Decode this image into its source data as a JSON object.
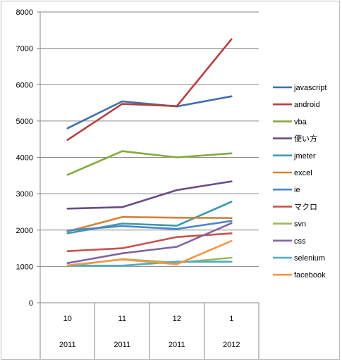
{
  "chart_data": {
    "type": "line",
    "title": "",
    "xlabel": "",
    "ylabel": "",
    "categories": [
      {
        "month": "10",
        "year": "2011"
      },
      {
        "month": "11",
        "year": "2011"
      },
      {
        "month": "12",
        "year": "2011"
      },
      {
        "month": "1",
        "year": "2012"
      }
    ],
    "ylim": [
      0,
      8000
    ],
    "yticks": [
      "0",
      "1000",
      "2000",
      "3000",
      "4000",
      "5000",
      "6000",
      "7000",
      "8000"
    ],
    "grid": "horizontal",
    "legend": "right",
    "series": [
      {
        "name": "javascript",
        "color": "#3F6FAE",
        "values": [
          4800,
          5540,
          5400,
          5680
        ]
      },
      {
        "name": "android",
        "color": "#B3403D",
        "values": [
          4480,
          5470,
          5410,
          7250
        ]
      },
      {
        "name": "vba",
        "color": "#86A93E",
        "values": [
          3520,
          4170,
          4000,
          4110
        ]
      },
      {
        "name": "使い方",
        "color": "#694B88",
        "values": [
          2590,
          2630,
          3100,
          3340
        ]
      },
      {
        "name": "jmeter",
        "color": "#3B9AAE",
        "values": [
          1910,
          2180,
          2120,
          2780
        ]
      },
      {
        "name": "excel",
        "color": "#D4823A",
        "values": [
          1960,
          2360,
          2340,
          2330
        ]
      },
      {
        "name": "ie",
        "color": "#4D86C5",
        "values": [
          1990,
          2110,
          2030,
          2250
        ]
      },
      {
        "name": "マクロ",
        "color": "#C8524E",
        "values": [
          1420,
          1500,
          1810,
          1910
        ]
      },
      {
        "name": "svn",
        "color": "#9BBB59",
        "values": [
          1010,
          1200,
          1100,
          1240
        ]
      },
      {
        "name": "css",
        "color": "#8064A2",
        "values": [
          1090,
          1360,
          1540,
          2190
        ]
      },
      {
        "name": "selenium",
        "color": "#4BACC6",
        "values": [
          1020,
          1020,
          1130,
          1130
        ]
      },
      {
        "name": "facebook",
        "color": "#F79646",
        "values": [
          1030,
          1190,
          1060,
          1700
        ]
      }
    ]
  }
}
